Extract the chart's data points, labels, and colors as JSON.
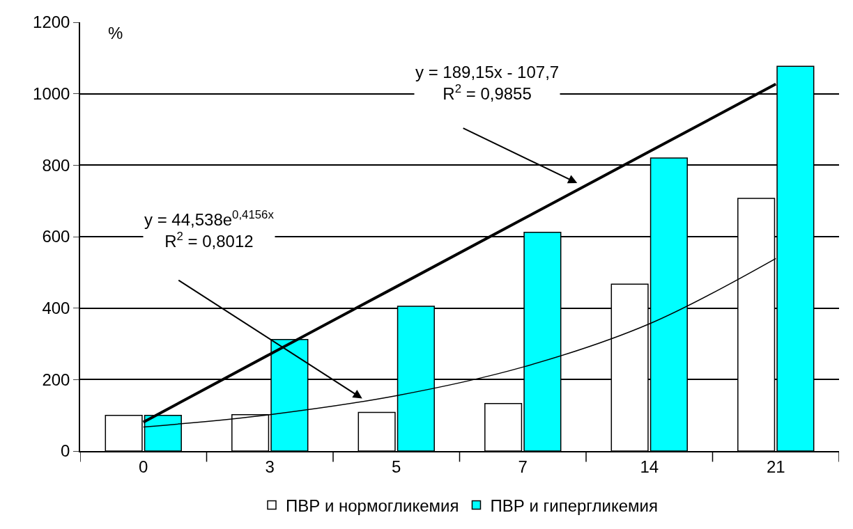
{
  "chart_data": {
    "type": "bar",
    "ylabel": "%",
    "categories": [
      "0",
      "3",
      "5",
      "7",
      "14",
      "21"
    ],
    "series": [
      {
        "name": "ПВР и нормогликемия",
        "color": "#ffffff",
        "values": [
          100,
          102,
          108,
          133,
          467,
          707
        ]
      },
      {
        "name": "ПВР и гипергликемия",
        "color": "#00ffff",
        "values": [
          100,
          312,
          405,
          612,
          820,
          1077
        ]
      },
      {
        "type": "line",
        "color": "#000000",
        "x": [
          "0",
          "3",
          "5",
          "7",
          "14",
          "21"
        ],
        "values": [
          81,
          271,
          460,
          649,
          838,
          1027
        ]
      },
      {
        "type": "line",
        "color": "#000000",
        "x": [
          "0",
          "3",
          "5",
          "7",
          "14",
          "21"
        ],
        "values": [
          67,
          102,
          155,
          235,
          356,
          539
        ]
      }
    ],
    "annotations": [
      "y = 189,15x - 107,7\nR$^{2}$ = 0,9855",
      "y = 44,538e$^{0,4156x}$\nR$^{2}$ = 0,8012"
    ],
    "ylim": [
      0,
      1200
    ],
    "yticks": [
      0,
      200,
      400,
      600,
      800,
      1000,
      1200
    ],
    "grid": "y",
    "legend": "bottom"
  }
}
